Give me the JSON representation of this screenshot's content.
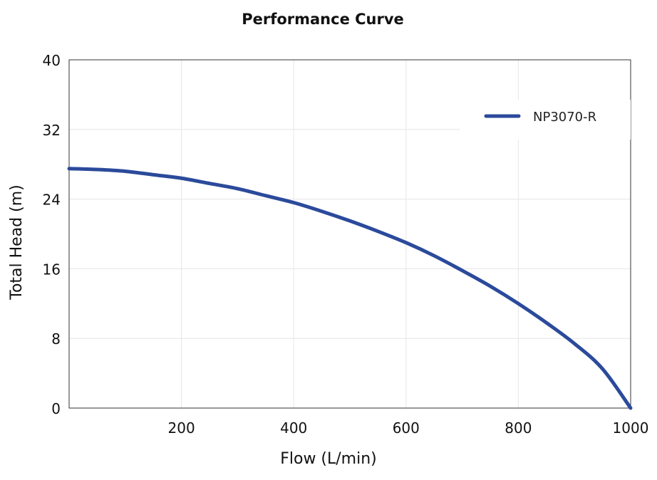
{
  "chart_data": {
    "type": "line",
    "title": "Performance Curve",
    "xlabel": "Flow (L/min)",
    "ylabel": "Total Head (m)",
    "xlim": [
      0,
      1000
    ],
    "ylim": [
      0,
      40
    ],
    "x_ticks": [
      200,
      400,
      600,
      800,
      1000
    ],
    "y_ticks": [
      0,
      8,
      16,
      24,
      32,
      40
    ],
    "grid": true,
    "legend_position": "top-right",
    "series": [
      {
        "name": "NP3070-R",
        "color": "#2b4a9b",
        "x": [
          0,
          50,
          100,
          150,
          200,
          250,
          300,
          350,
          400,
          450,
          500,
          550,
          600,
          650,
          700,
          750,
          800,
          850,
          900,
          950,
          1000
        ],
        "y": [
          27.5,
          27.4,
          27.2,
          26.8,
          26.4,
          25.8,
          25.2,
          24.4,
          23.6,
          22.6,
          21.5,
          20.3,
          19.0,
          17.5,
          15.8,
          14.0,
          12.0,
          9.8,
          7.4,
          4.5,
          0.0
        ]
      }
    ]
  }
}
